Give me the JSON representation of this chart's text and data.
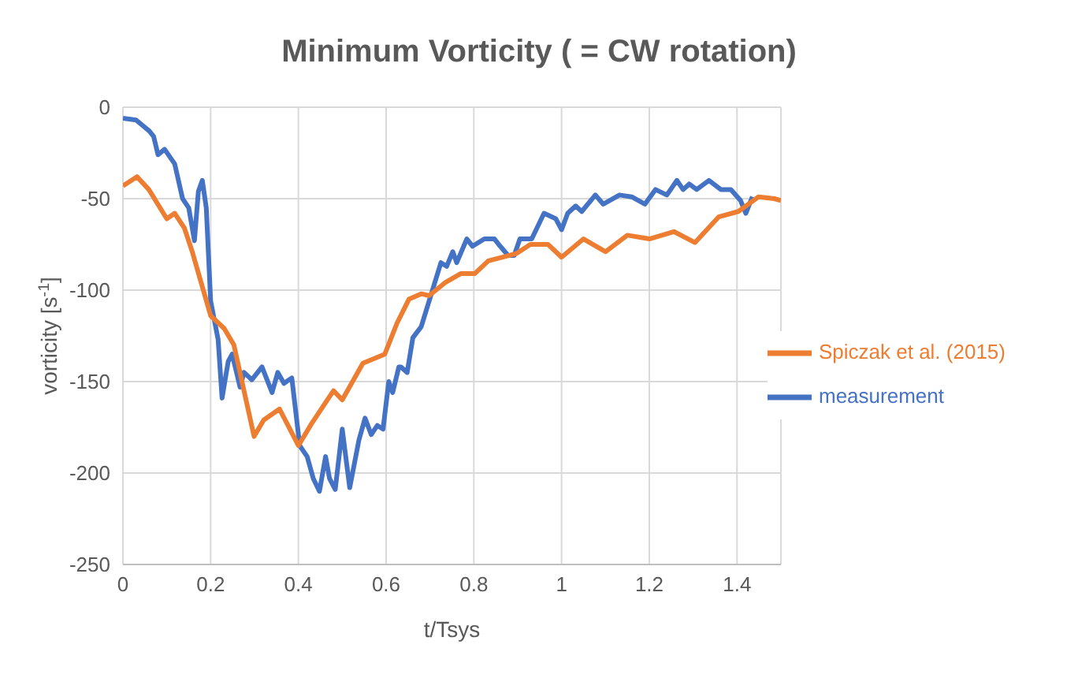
{
  "chart_data": {
    "type": "line",
    "title": "Minimum Vorticity ( = CW rotation)",
    "xlabel": "t/Tsys",
    "ylabel": "vorticity [s$^{-1}$]",
    "xlim": [
      0,
      1.5
    ],
    "xticks": [
      0,
      {
        "value": 0.2,
        "label": "0.2"
      },
      {
        "value": 0.4,
        "label": "0.4"
      },
      {
        "value": 0.6,
        "label": "0.6"
      },
      {
        "value": 0.8,
        "label": "0.8"
      },
      1,
      {
        "value": 1.2,
        "label": "1.2"
      },
      {
        "value": 1.4,
        "label": "1.4"
      }
    ],
    "ylim": [
      -250,
      0
    ],
    "yticks": [
      -250,
      -200,
      -150,
      -100,
      -50,
      0
    ],
    "grid": true,
    "legend": "right",
    "marker": "none",
    "line_style": "solid",
    "series": [
      {
        "name": "measurement",
        "color": "#4472c4",
        "x": [
          0,
          0.03,
          0.06,
          0.07,
          0.08,
          0.095,
          0.118,
          0.136,
          0.15,
          0.163,
          0.172,
          0.181,
          0.19,
          0.2,
          0.217,
          0.226,
          0.24,
          0.249,
          0.267,
          0.276,
          0.294,
          0.317,
          0.34,
          0.353,
          0.367,
          0.385,
          0.403,
          0.42,
          0.434,
          0.448,
          0.462,
          0.471,
          0.484,
          0.5,
          0.517,
          0.538,
          0.552,
          0.566,
          0.58,
          0.593,
          0.606,
          0.615,
          0.629,
          0.634,
          0.648,
          0.661,
          0.68,
          0.698,
          0.725,
          0.738,
          0.752,
          0.761,
          0.784,
          0.797,
          0.824,
          0.847,
          0.86,
          0.878,
          0.892,
          0.905,
          0.932,
          0.96,
          0.987,
          1.0,
          1.014,
          1.032,
          1.046,
          1.077,
          1.095,
          1.132,
          1.16,
          1.19,
          1.214,
          1.24,
          1.263,
          1.277,
          1.291,
          1.308,
          1.336,
          1.363,
          1.386,
          1.408,
          1.42,
          1.435
        ],
        "values": [
          -6,
          -7,
          -13,
          -16,
          -26,
          -23,
          -31,
          -50,
          -55,
          -73,
          -46,
          -40,
          -55,
          -106,
          -127,
          -159,
          -139,
          -135,
          -153,
          -145,
          -149,
          -142,
          -156,
          -145,
          -151,
          -148,
          -185,
          -191,
          -203,
          -210,
          -191,
          -203,
          -209,
          -176,
          -208,
          -182,
          -170,
          -179,
          -174,
          -176,
          -150,
          -156,
          -142,
          -142,
          -145,
          -126,
          -120,
          -106,
          -85,
          -87,
          -79,
          -85,
          -72,
          -76,
          -72,
          -72,
          -76,
          -81,
          -81,
          -72,
          -72,
          -58,
          -61,
          -67,
          -58,
          -54,
          -57,
          -48,
          -53,
          -48,
          -49,
          -53,
          -45,
          -48,
          -40,
          -45,
          -42,
          -45,
          -40,
          -45,
          -45,
          -51,
          -58,
          -49
        ]
      },
      {
        "name": "Spiczak et al. (2015)",
        "color": "#ed7d31",
        "x": [
          0,
          0.032,
          0.059,
          0.1,
          0.118,
          0.14,
          0.158,
          0.2,
          0.231,
          0.253,
          0.299,
          0.321,
          0.357,
          0.4,
          0.43,
          0.48,
          0.5,
          0.547,
          0.597,
          0.625,
          0.652,
          0.68,
          0.698,
          0.734,
          0.77,
          0.802,
          0.833,
          0.897,
          0.929,
          0.969,
          1.0,
          1.05,
          1.1,
          1.15,
          1.2,
          1.256,
          1.304,
          1.358,
          1.403,
          1.449,
          1.485,
          1.5
        ],
        "values": [
          -43,
          -38,
          -45,
          -61,
          -58,
          -66,
          -79,
          -114,
          -121,
          -130,
          -180,
          -171,
          -165,
          -185,
          -173,
          -155,
          -160,
          -140,
          -135,
          -118,
          -105,
          -102,
          -103,
          -96,
          -91,
          -91,
          -84,
          -80,
          -75,
          -75,
          -82,
          -72,
          -79,
          -70,
          -72,
          -68,
          -74,
          -60,
          -57,
          -49,
          -50,
          -51
        ]
      }
    ]
  }
}
